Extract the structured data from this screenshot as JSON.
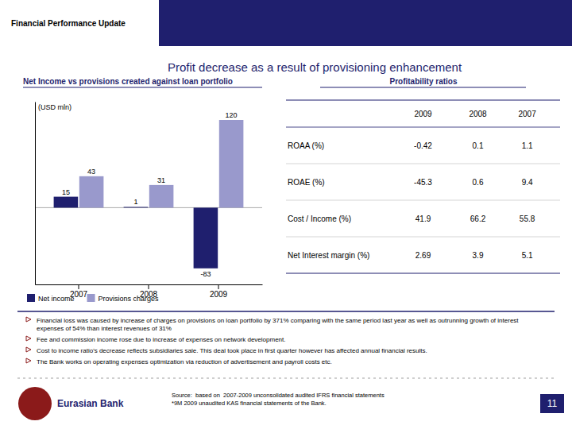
{
  "chart_data": {
    "type": "bar",
    "title": "Net Income vs provisions created against loan portfolio",
    "y_label": "(USD mln)",
    "categories": [
      "2007",
      "2008",
      "2009"
    ],
    "series": [
      {
        "name": "Net income",
        "color": "#1F1F6E",
        "values": [
          15,
          1,
          -83
        ]
      },
      {
        "name": "Provisions charges",
        "color": "#9999CC",
        "values": [
          43,
          31,
          120
        ]
      }
    ],
    "ylim": [
      -105,
      145
    ],
    "yticks": [],
    "tick_labels": "x",
    "data_labels": true,
    "legend": "lower left"
  },
  "table": {
    "title": "Profitability ratios",
    "columns": [
      "2009",
      "2008",
      "2007"
    ],
    "rows": [
      [
        "ROAA (%)",
        "-0.42",
        "0.1",
        "1.1"
      ],
      [
        "ROAE (%)",
        "-45.3",
        "0.6",
        "9.4"
      ],
      [
        "Cost / Income (%)",
        "41.9",
        "66.2",
        "55.8"
      ],
      [
        "Net Interest margin (%)",
        "2.69",
        "3.9",
        "5.1"
      ]
    ]
  },
  "page": {
    "tab_title": "Financial Performance Update",
    "title": "Profit decrease as a result of provisioning enhancement",
    "color": "#1F1F6E",
    "bullets": [
      "Financial loss was caused by increase of charges on provisions on loan portfolio by 371% comparing with the same period last year as well as outrunning growth of interest expenses of 54% than interest revenues of 31%",
      "Fee and commission income rose due to increase of expenses on network development.",
      "Cost to income ratio's decrease reflects subsidiaries sale. This deal took place in first quarter however has affected annual financial results.",
      "The Bank works on operating expenses optimization via reduction of advertisement and payroll costs etc."
    ],
    "brand": "Eurasian Bank",
    "footer": [
      "Source:  based on  2007-2009 unconsolidated audited IFRS financial statements",
      "*9M 2009 unaudited KAS financial statements of the Bank."
    ],
    "page_number": "11"
  }
}
